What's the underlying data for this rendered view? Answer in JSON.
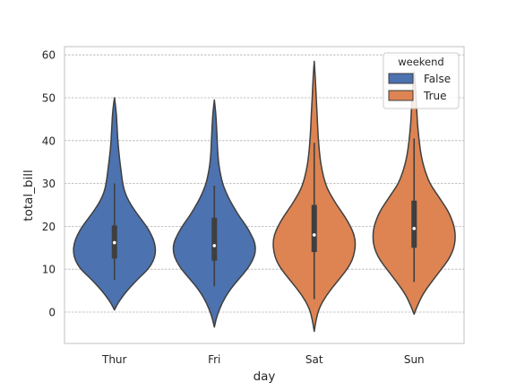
{
  "chart_data": {
    "type": "violin",
    "xlabel": "day",
    "ylabel": "total_bill",
    "categories": [
      "Thur",
      "Fri",
      "Sat",
      "Sun"
    ],
    "yticks": [
      0,
      10,
      20,
      30,
      40,
      50,
      60
    ],
    "ylim": [
      -7.5,
      62
    ],
    "grid": true,
    "legend": {
      "title": "weekend",
      "position": "top-right",
      "entries": [
        {
          "label": "False",
          "color": "#4c72b0"
        },
        {
          "label": "True",
          "color": "#dd8452"
        }
      ]
    },
    "series": [
      {
        "category": "Thur",
        "group": "False",
        "color": "#4c72b0",
        "min": 0.5,
        "max": 50,
        "q1": 12.5,
        "median": 16.2,
        "q3": 20.2,
        "whisker_low": 7.5,
        "whisker_high": 30,
        "density_profile": [
          [
            0.5,
            0.0
          ],
          [
            2,
            0.08
          ],
          [
            4,
            0.22
          ],
          [
            6,
            0.4
          ],
          [
            8,
            0.6
          ],
          [
            10,
            0.82
          ],
          [
            12,
            0.95
          ],
          [
            14,
            1.0
          ],
          [
            16,
            0.98
          ],
          [
            18,
            0.9
          ],
          [
            20,
            0.78
          ],
          [
            22,
            0.62
          ],
          [
            24,
            0.47
          ],
          [
            26,
            0.34
          ],
          [
            28,
            0.25
          ],
          [
            30,
            0.2
          ],
          [
            33,
            0.16
          ],
          [
            36,
            0.12
          ],
          [
            40,
            0.08
          ],
          [
            44,
            0.06
          ],
          [
            47,
            0.04
          ],
          [
            50,
            0.0
          ]
        ]
      },
      {
        "category": "Fri",
        "group": "False",
        "color": "#4c72b0",
        "min": -3.5,
        "max": 49.5,
        "q1": 12,
        "median": 15.5,
        "q3": 22,
        "whisker_low": 6,
        "whisker_high": 29.5,
        "density_profile": [
          [
            -3.5,
            0.0
          ],
          [
            -1,
            0.06
          ],
          [
            2,
            0.18
          ],
          [
            5,
            0.36
          ],
          [
            8,
            0.62
          ],
          [
            10,
            0.8
          ],
          [
            12,
            0.93
          ],
          [
            14,
            1.0
          ],
          [
            16,
            0.99
          ],
          [
            18,
            0.9
          ],
          [
            20,
            0.78
          ],
          [
            22,
            0.63
          ],
          [
            24,
            0.5
          ],
          [
            26,
            0.38
          ],
          [
            28,
            0.28
          ],
          [
            30,
            0.2
          ],
          [
            33,
            0.13
          ],
          [
            36,
            0.09
          ],
          [
            40,
            0.07
          ],
          [
            44,
            0.05
          ],
          [
            47,
            0.03
          ],
          [
            49.5,
            0.0
          ]
        ]
      },
      {
        "category": "Sat",
        "group": "True",
        "color": "#dd8452",
        "min": -4.5,
        "max": 58.5,
        "q1": 14,
        "median": 18,
        "q3": 25,
        "whisker_low": 3,
        "whisker_high": 39.5,
        "density_profile": [
          [
            -4.5,
            0.0
          ],
          [
            -2,
            0.04
          ],
          [
            1,
            0.12
          ],
          [
            4,
            0.3
          ],
          [
            7,
            0.55
          ],
          [
            10,
            0.8
          ],
          [
            12,
            0.92
          ],
          [
            14,
            0.98
          ],
          [
            16,
            1.0
          ],
          [
            18,
            0.97
          ],
          [
            20,
            0.88
          ],
          [
            22,
            0.76
          ],
          [
            24,
            0.62
          ],
          [
            26,
            0.48
          ],
          [
            28,
            0.36
          ],
          [
            30,
            0.27
          ],
          [
            33,
            0.19
          ],
          [
            36,
            0.14
          ],
          [
            40,
            0.1
          ],
          [
            44,
            0.08
          ],
          [
            48,
            0.06
          ],
          [
            52,
            0.04
          ],
          [
            55,
            0.025
          ],
          [
            58.5,
            0.0
          ]
        ]
      },
      {
        "category": "Sun",
        "group": "True",
        "color": "#dd8452",
        "min": -0.5,
        "max": 56,
        "q1": 15,
        "median": 19.5,
        "q3": 26,
        "whisker_low": 7,
        "whisker_high": 40.5,
        "density_profile": [
          [
            -0.5,
            0.0
          ],
          [
            1,
            0.06
          ],
          [
            4,
            0.2
          ],
          [
            7,
            0.42
          ],
          [
            10,
            0.66
          ],
          [
            12,
            0.82
          ],
          [
            14,
            0.93
          ],
          [
            16,
            0.99
          ],
          [
            18,
            1.0
          ],
          [
            20,
            0.97
          ],
          [
            22,
            0.9
          ],
          [
            24,
            0.8
          ],
          [
            26,
            0.66
          ],
          [
            28,
            0.52
          ],
          [
            30,
            0.38
          ],
          [
            33,
            0.26
          ],
          [
            36,
            0.18
          ],
          [
            40,
            0.12
          ],
          [
            44,
            0.08
          ],
          [
            48,
            0.06
          ],
          [
            52,
            0.04
          ],
          [
            56,
            0.0
          ]
        ]
      }
    ]
  }
}
